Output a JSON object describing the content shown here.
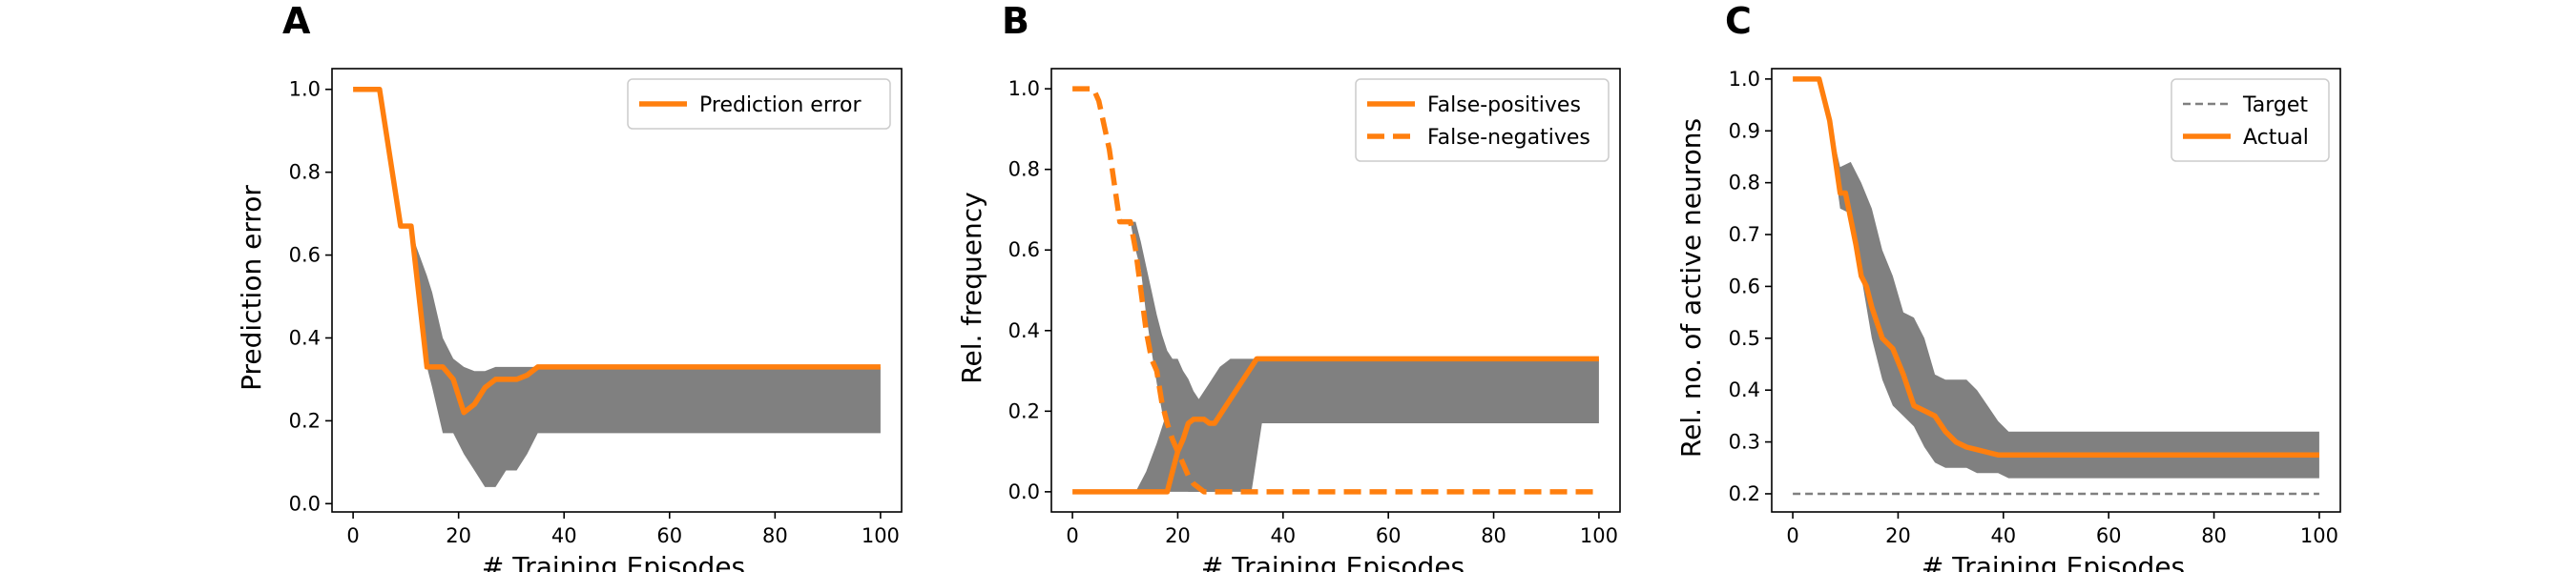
{
  "chart_data": [
    {
      "panel": "A",
      "type": "line",
      "xlabel": "# Training Episodes",
      "ylabel": "Prediction error",
      "xlim": [
        -4,
        104
      ],
      "ylim": [
        -0.02,
        1.05
      ],
      "xticks": [
        0,
        20,
        40,
        60,
        80,
        100
      ],
      "yticks": [
        0.0,
        0.2,
        0.4,
        0.6,
        0.8,
        1.0
      ],
      "ytick_decimals": 1,
      "grid": false,
      "legend_position": "top-right",
      "band": {
        "color": "#808080",
        "x": [
          0,
          5,
          9,
          11,
          12,
          14,
          15,
          17,
          19,
          21,
          23,
          25,
          27,
          29,
          31,
          33,
          35,
          100
        ],
        "upper": [
          1.0,
          1.0,
          0.67,
          0.67,
          0.62,
          0.55,
          0.51,
          0.4,
          0.35,
          0.33,
          0.32,
          0.32,
          0.33,
          0.33,
          0.33,
          0.33,
          0.33,
          0.33
        ],
        "lower": [
          1.0,
          1.0,
          0.67,
          0.67,
          0.55,
          0.33,
          0.28,
          0.17,
          0.17,
          0.12,
          0.08,
          0.04,
          0.04,
          0.08,
          0.08,
          0.12,
          0.17,
          0.17
        ]
      },
      "series": [
        {
          "name": "Prediction error",
          "color": "#ff7f0e",
          "dash": "solid",
          "x": [
            0,
            5,
            9,
            11,
            14,
            17,
            19,
            21,
            23,
            25,
            27,
            29,
            31,
            33,
            35,
            100
          ],
          "y": [
            1.0,
            1.0,
            0.67,
            0.67,
            0.33,
            0.33,
            0.3,
            0.22,
            0.24,
            0.28,
            0.3,
            0.3,
            0.3,
            0.31,
            0.33,
            0.33
          ]
        }
      ]
    },
    {
      "panel": "B",
      "type": "line",
      "xlabel": "# Training Episodes",
      "ylabel": "Rel. frequency",
      "xlim": [
        -4,
        104
      ],
      "ylim": [
        -0.05,
        1.05
      ],
      "xticks": [
        0,
        20,
        40,
        60,
        80,
        100
      ],
      "yticks": [
        0.0,
        0.2,
        0.4,
        0.6,
        0.8,
        1.0
      ],
      "ytick_decimals": 1,
      "grid": false,
      "legend_position": "top-right",
      "bands": [
        {
          "color": "#808080",
          "x": [
            9,
            11,
            12,
            13,
            14,
            15,
            16,
            17,
            18,
            19,
            20,
            21,
            22,
            23,
            24,
            25,
            26,
            27
          ],
          "upper": [
            0.67,
            0.67,
            0.67,
            0.62,
            0.56,
            0.5,
            0.44,
            0.39,
            0.35,
            0.33,
            0.33,
            0.3,
            0.25,
            0.2,
            0.15,
            0.1,
            0.05,
            0.0
          ],
          "lower": [
            0.67,
            0.67,
            0.6,
            0.55,
            0.44,
            0.35,
            0.27,
            0.2,
            0.14,
            0.08,
            0.05,
            0.02,
            0.0,
            0.0,
            0.0,
            0.0,
            0.0,
            0.0
          ]
        },
        {
          "color": "#808080",
          "x": [
            12,
            14,
            16,
            18,
            19,
            20,
            21,
            22,
            23,
            24,
            25,
            26,
            27,
            28,
            30,
            32,
            34,
            36,
            100
          ],
          "upper": [
            0.0,
            0.05,
            0.12,
            0.2,
            0.25,
            0.28,
            0.3,
            0.28,
            0.25,
            0.23,
            0.25,
            0.27,
            0.29,
            0.31,
            0.33,
            0.33,
            0.33,
            0.33,
            0.33
          ],
          "lower": [
            0.0,
            0.0,
            0.0,
            0.0,
            0.0,
            0.0,
            0.0,
            0.0,
            0.0,
            0.0,
            0.0,
            0.0,
            0.0,
            0.0,
            0.0,
            0.0,
            0.0,
            0.17,
            0.17
          ]
        }
      ],
      "series": [
        {
          "name": "False-positives",
          "color": "#ff7f0e",
          "dash": "solid",
          "x": [
            0,
            18,
            19,
            20,
            21,
            22,
            23,
            24,
            25,
            26,
            27,
            30,
            33,
            35,
            100
          ],
          "y": [
            0.0,
            0.0,
            0.05,
            0.1,
            0.13,
            0.17,
            0.18,
            0.18,
            0.18,
            0.17,
            0.17,
            0.23,
            0.29,
            0.33,
            0.33
          ]
        },
        {
          "name": "False-negatives",
          "color": "#ff7f0e",
          "dash": "dashed",
          "x": [
            0,
            4,
            5,
            7,
            9,
            11,
            12,
            13,
            14,
            15,
            16,
            17,
            18,
            19,
            20,
            21,
            22,
            23,
            25,
            27,
            100
          ],
          "y": [
            1.0,
            1.0,
            0.97,
            0.85,
            0.67,
            0.67,
            0.6,
            0.5,
            0.4,
            0.33,
            0.3,
            0.22,
            0.17,
            0.13,
            0.1,
            0.07,
            0.04,
            0.02,
            0.0,
            0.0,
            0.0
          ]
        }
      ]
    },
    {
      "panel": "C",
      "type": "line",
      "xlabel": "# Training Episodes",
      "ylabel": "Rel. no. of active neurons",
      "xlim": [
        -4,
        104
      ],
      "ylim": [
        0.165,
        1.02
      ],
      "xticks": [
        0,
        20,
        40,
        60,
        80,
        100
      ],
      "yticks": [
        0.2,
        0.3,
        0.4,
        0.5,
        0.6,
        0.7,
        0.8,
        0.9,
        1.0
      ],
      "ytick_decimals": 1,
      "grid": false,
      "legend_position": "top-right",
      "band": {
        "color": "#808080",
        "x": [
          0,
          5,
          7,
          9,
          11,
          13,
          15,
          17,
          19,
          21,
          23,
          25,
          27,
          29,
          31,
          33,
          35,
          37,
          39,
          41,
          100
        ],
        "upper": [
          1.0,
          1.0,
          0.92,
          0.83,
          0.84,
          0.8,
          0.75,
          0.67,
          0.62,
          0.55,
          0.54,
          0.5,
          0.43,
          0.42,
          0.42,
          0.42,
          0.4,
          0.37,
          0.34,
          0.32,
          0.32
        ],
        "lower": [
          1.0,
          1.0,
          0.9,
          0.75,
          0.74,
          0.62,
          0.5,
          0.42,
          0.37,
          0.35,
          0.33,
          0.29,
          0.26,
          0.25,
          0.25,
          0.25,
          0.24,
          0.24,
          0.24,
          0.23,
          0.23
        ]
      },
      "series": [
        {
          "name": "Target",
          "color": "#808080",
          "dash": "thin-dashed",
          "x": [
            0,
            100
          ],
          "y": [
            0.2,
            0.2
          ]
        },
        {
          "name": "Actual",
          "color": "#ff7f0e",
          "dash": "solid",
          "x": [
            0,
            5,
            7,
            9,
            10,
            11,
            12,
            13,
            14,
            15,
            17,
            19,
            21,
            23,
            25,
            27,
            29,
            31,
            33,
            35,
            37,
            39,
            41,
            100
          ],
          "y": [
            1.0,
            1.0,
            0.92,
            0.78,
            0.78,
            0.73,
            0.68,
            0.62,
            0.6,
            0.56,
            0.5,
            0.48,
            0.43,
            0.37,
            0.36,
            0.35,
            0.32,
            0.3,
            0.29,
            0.285,
            0.28,
            0.275,
            0.275,
            0.275
          ]
        }
      ]
    }
  ]
}
